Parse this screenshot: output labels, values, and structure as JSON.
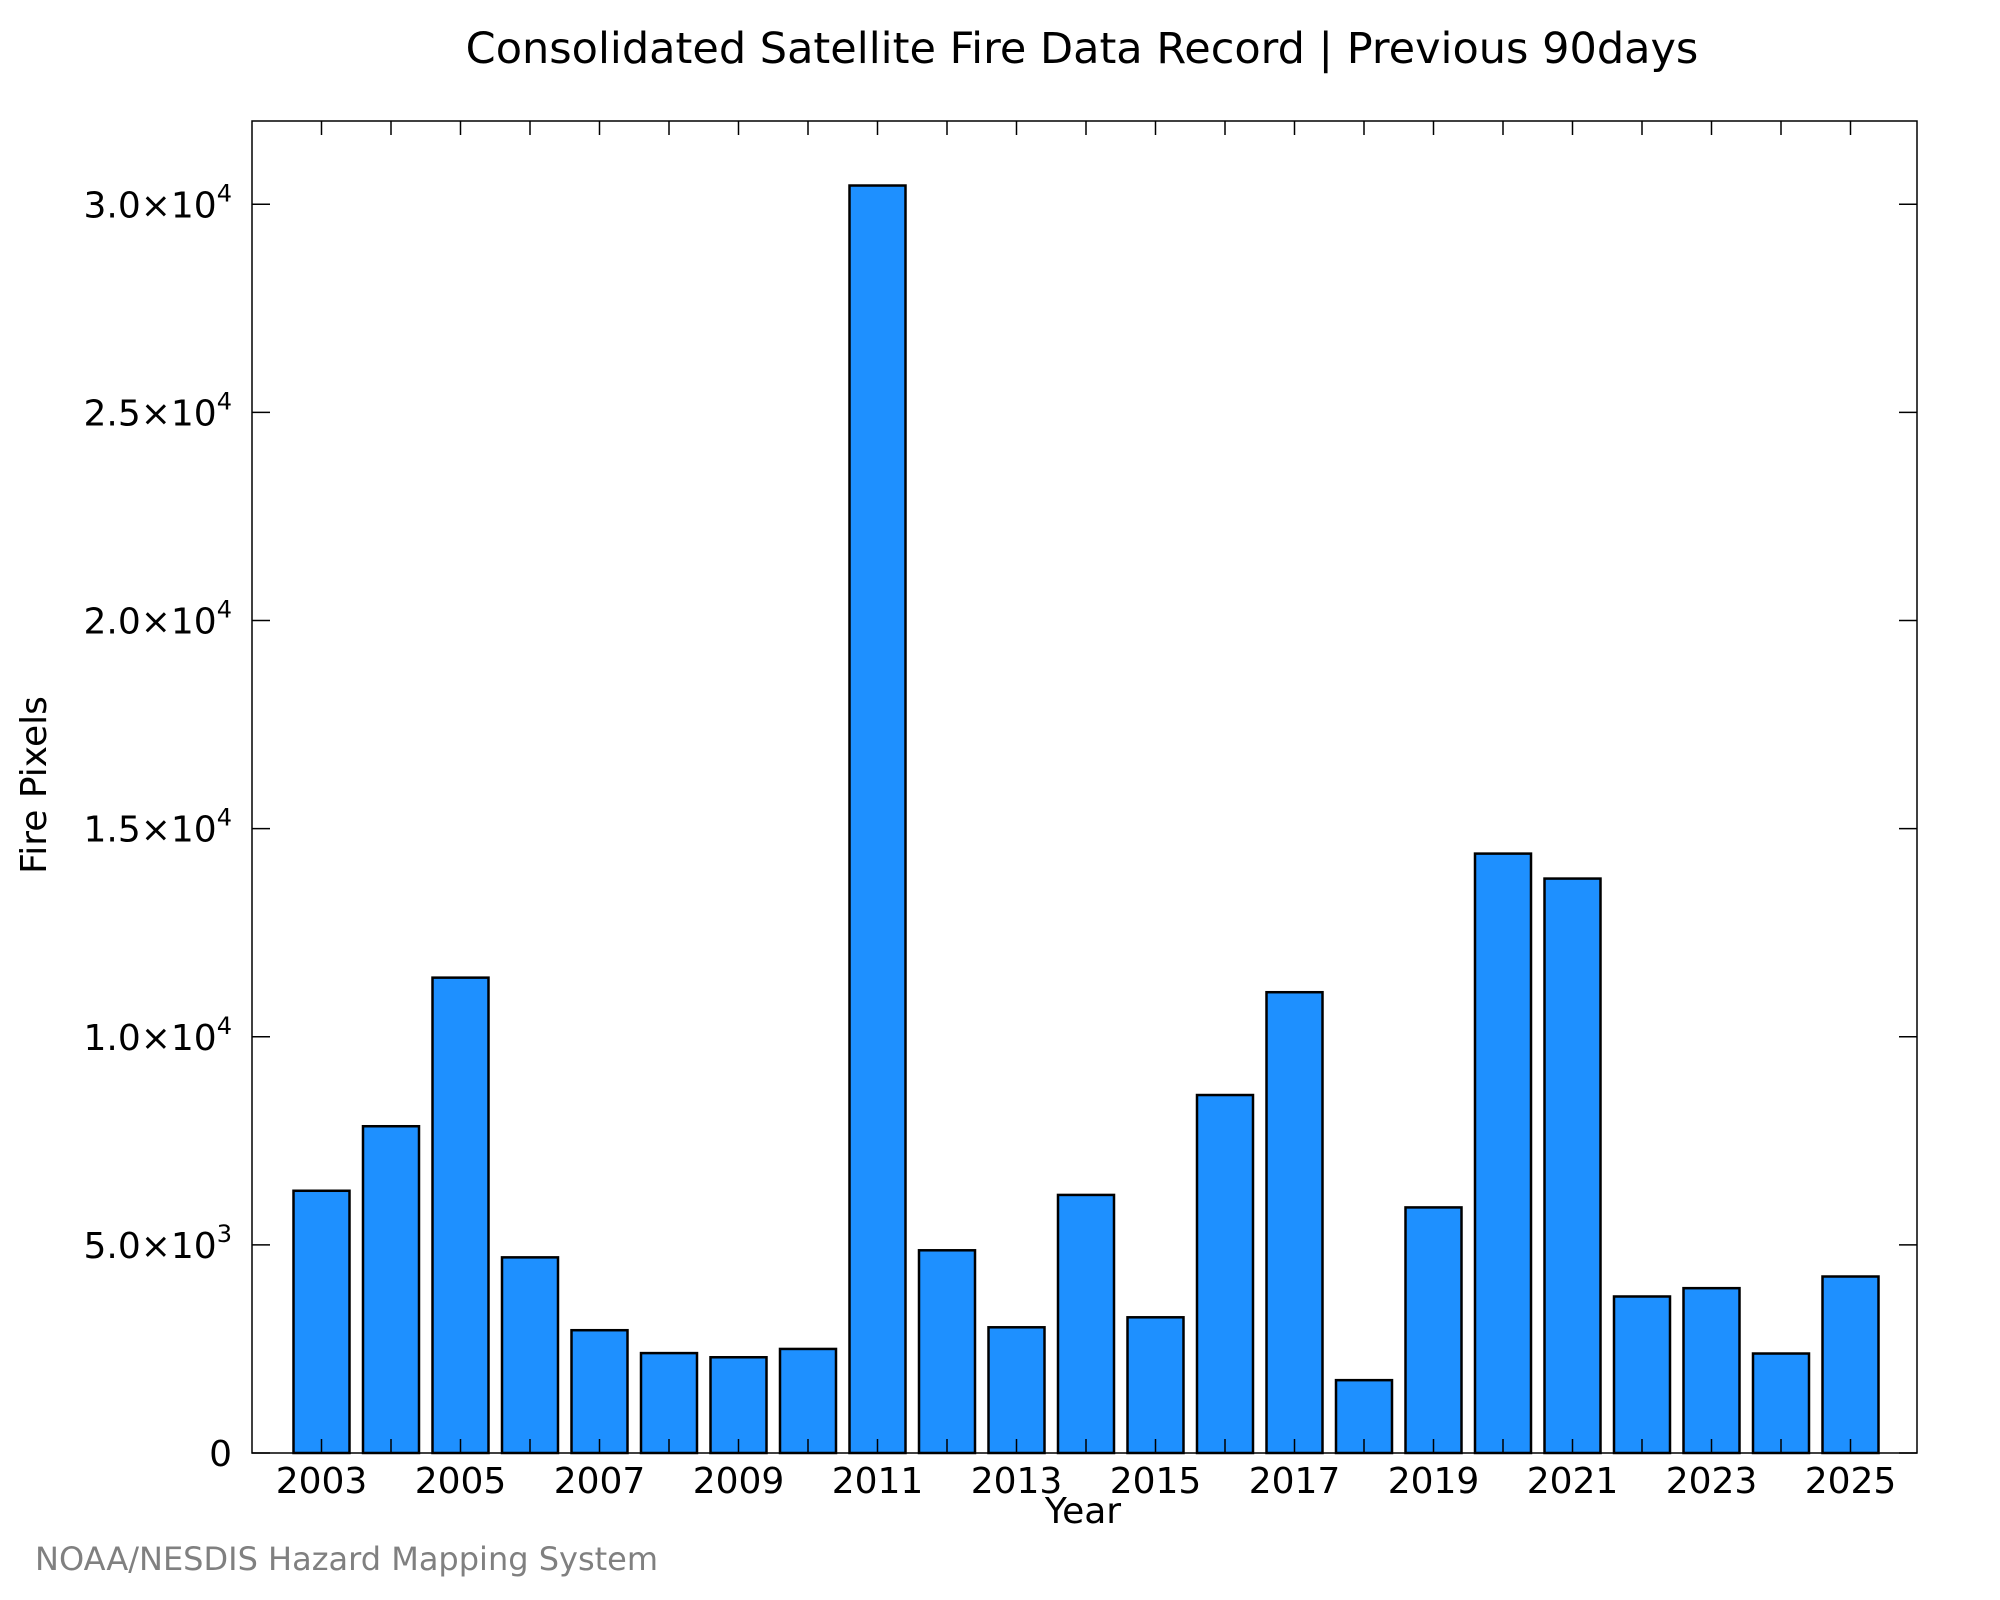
{
  "chart_data": {
    "type": "bar",
    "title": "Consolidated Satellite Fire Data Record | Previous 90days",
    "xlabel": "Year",
    "ylabel": "Fire Pixels",
    "credit": "NOAA/NESDIS Hazard Mapping System",
    "categories": [
      2003,
      2004,
      2005,
      2006,
      2007,
      2008,
      2009,
      2010,
      2011,
      2012,
      2013,
      2014,
      2015,
      2016,
      2017,
      2018,
      2019,
      2020,
      2021,
      2022,
      2023,
      2024,
      2025
    ],
    "values": [
      6300,
      7850,
      11420,
      4700,
      2950,
      2400,
      2300,
      2500,
      30450,
      4870,
      3020,
      6200,
      3260,
      8600,
      11070,
      1750,
      5900,
      14400,
      13800,
      3760,
      3960,
      2390,
      4240
    ],
    "xticks": [
      "2003",
      "2005",
      "2007",
      "2009",
      "2011",
      "2013",
      "2015",
      "2017",
      "2019",
      "2021",
      "2023",
      "2025"
    ],
    "ylim": [
      0,
      32000
    ],
    "yticks": [
      {
        "value": 0,
        "mantissa": "0",
        "exp": ""
      },
      {
        "value": 5000,
        "mantissa": "5.0×10",
        "exp": "3"
      },
      {
        "value": 10000,
        "mantissa": "1.0×10",
        "exp": "4"
      },
      {
        "value": 15000,
        "mantissa": "1.5×10",
        "exp": "4"
      },
      {
        "value": 20000,
        "mantissa": "2.0×10",
        "exp": "4"
      },
      {
        "value": 25000,
        "mantissa": "2.5×10",
        "exp": "4"
      },
      {
        "value": 30000,
        "mantissa": "3.0×10",
        "exp": "4"
      }
    ],
    "bar_color": "#1e90ff",
    "edge_color": "#000000",
    "grid": false,
    "legend": "none"
  }
}
